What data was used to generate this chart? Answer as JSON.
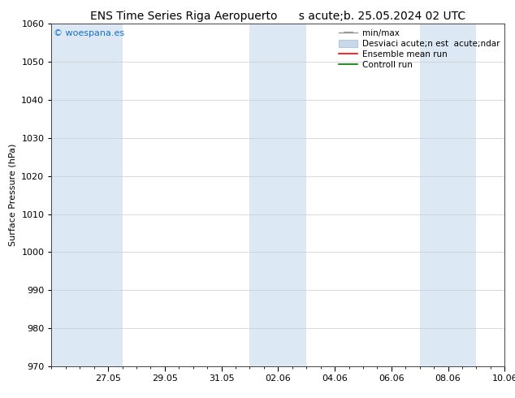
{
  "title": "ENS Time Series Riga Aeropuerto      s acute;b. 25.05.2024 02 UTC",
  "ylabel": "Surface Pressure (hPa)",
  "ylim": [
    970,
    1060
  ],
  "yticks": [
    970,
    980,
    990,
    1000,
    1010,
    1020,
    1030,
    1040,
    1050,
    1060
  ],
  "xlim_start": 0,
  "xlim_end": 16,
  "xtick_labels": [
    "27.05",
    "29.05",
    "31.05",
    "02.06",
    "04.06",
    "06.06",
    "08.06",
    "10.06"
  ],
  "xtick_positions": [
    2,
    4,
    6,
    8,
    10,
    12,
    14,
    16
  ],
  "shaded_bands": [
    {
      "x_start": 0,
      "x_end": 2.5
    },
    {
      "x_start": 7,
      "x_end": 9
    },
    {
      "x_start": 13,
      "x_end": 15
    }
  ],
  "background_color": "#ffffff",
  "plot_bg_color": "#ffffff",
  "band_color": "#dce9f5",
  "watermark_text": "© woespana.es",
  "watermark_color": "#1a6fc4",
  "legend_label_minmax": "min/max",
  "legend_label_std": "Desviaci acute;n est  acute;ndar",
  "legend_label_ensemble": "Ensemble mean run",
  "legend_label_control": "Controll run",
  "title_fontsize": 10,
  "axis_label_fontsize": 8,
  "tick_fontsize": 8,
  "watermark_fontsize": 8,
  "legend_fontsize": 7.5
}
